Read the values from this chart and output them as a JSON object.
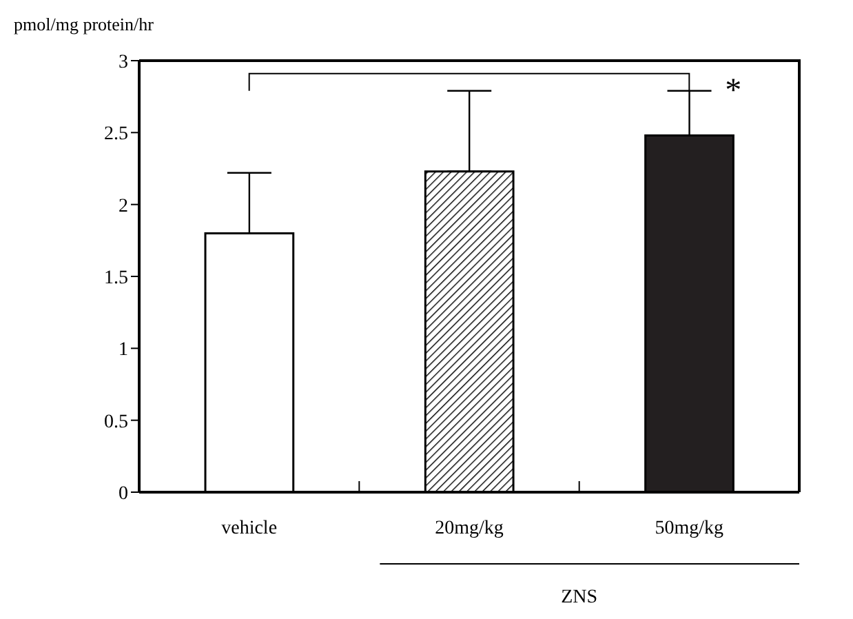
{
  "chart_data": {
    "type": "bar",
    "ylabel": "pmol/mg protein/hr",
    "categories": [
      "vehicle",
      "20mg/kg",
      "50mg/kg"
    ],
    "values": [
      1.8,
      2.23,
      2.48
    ],
    "errors": [
      [
        1.8,
        2.22
      ],
      [
        2.23,
        2.79
      ],
      [
        2.48,
        2.79
      ]
    ],
    "colors": [
      "#ffffff",
      "#000000",
      "#231f20"
    ],
    "ylim": [
      0,
      3
    ],
    "yticks": [
      0,
      0.5,
      1,
      1.5,
      2,
      2.5,
      3
    ],
    "annotations": [
      "*",
      "ZNS"
    ]
  }
}
